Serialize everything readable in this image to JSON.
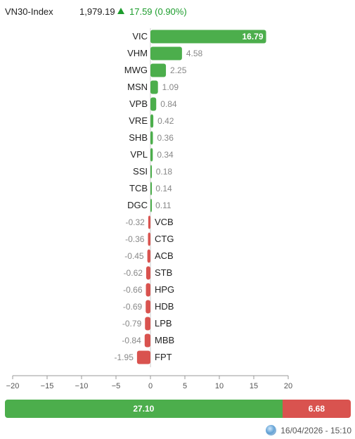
{
  "header": {
    "index_name": "VN30-Index",
    "price": "1,979.19",
    "change": "17.59 (0.90%)"
  },
  "colors": {
    "positive": "#4cae4c",
    "negative": "#d9534f",
    "up_text": "#1c9c2c"
  },
  "chart_data": {
    "type": "bar",
    "orientation": "horizontal",
    "categories": [
      "VIC",
      "VHM",
      "MWG",
      "MSN",
      "VPB",
      "VRE",
      "SHB",
      "VPL",
      "SSI",
      "TCB",
      "DGC",
      "VCB",
      "CTG",
      "ACB",
      "STB",
      "HPG",
      "HDB",
      "LPB",
      "MBB",
      "FPT"
    ],
    "values": [
      16.79,
      4.58,
      2.25,
      1.09,
      0.84,
      0.42,
      0.36,
      0.34,
      0.18,
      0.14,
      0.11,
      -0.32,
      -0.36,
      -0.45,
      -0.62,
      -0.66,
      -0.69,
      -0.79,
      -0.84,
      -1.95
    ],
    "value_labels": [
      "16.79",
      "4.58",
      "2.25",
      "1.09",
      "0.84",
      "0.42",
      "0.36",
      "0.34",
      "0.18",
      "0.14",
      "0.11",
      "-0.32",
      "-0.36",
      "-0.45",
      "-0.62",
      "-0.66",
      "-0.69",
      "-0.79",
      "-0.84",
      "-1.95"
    ],
    "xlim": [
      -20,
      20
    ],
    "xticks": [
      -20,
      -15,
      -10,
      -5,
      0,
      5,
      10,
      15,
      20
    ],
    "xtick_labels": [
      "−20",
      "−15",
      "−10",
      "−5",
      "0",
      "5",
      "10",
      "15",
      "20"
    ],
    "grid": false
  },
  "summary": {
    "positive_value": 27.1,
    "negative_value": 6.68,
    "positive_label": "27.10",
    "negative_label": "6.68"
  },
  "footer": {
    "timestamp": "16/04/2026 - 15:10",
    "icon": "globe-icon"
  }
}
